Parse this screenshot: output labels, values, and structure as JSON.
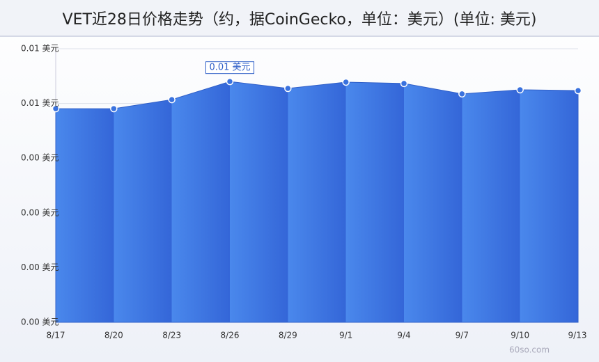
{
  "chart_data": {
    "type": "area",
    "title": "VET近28日价格走势（约，据CoinGecko，单位：美元）(单位: 美元)",
    "watermark": "60so.com",
    "categories": [
      "8/17",
      "8/20",
      "8/23",
      "8/26",
      "8/29",
      "9/1",
      "9/4",
      "9/7",
      "9/10",
      "9/13"
    ],
    "series": [
      {
        "color": "#3a72de",
        "values": [
          0.00781,
          0.00781,
          0.00814,
          0.0088,
          0.00855,
          0.00878,
          0.00873,
          0.00835,
          0.0085,
          0.00847
        ],
        "value_labels": [
          null,
          null,
          null,
          "0.01 美元",
          null,
          null,
          null,
          null,
          null,
          null
        ]
      }
    ],
    "ylim": [
      0,
      0.01
    ],
    "yticks": [
      {
        "value": 0,
        "label": "0.00 美元"
      },
      {
        "value": 0.002,
        "label": "0.00 美元"
      },
      {
        "value": 0.004,
        "label": "0.00 美元"
      },
      {
        "value": 0.006,
        "label": "0.00 美元"
      },
      {
        "value": 0.008,
        "label": "0.01 美元"
      },
      {
        "value": 0.01,
        "label": "0.01 美元"
      }
    ],
    "grid": true
  }
}
